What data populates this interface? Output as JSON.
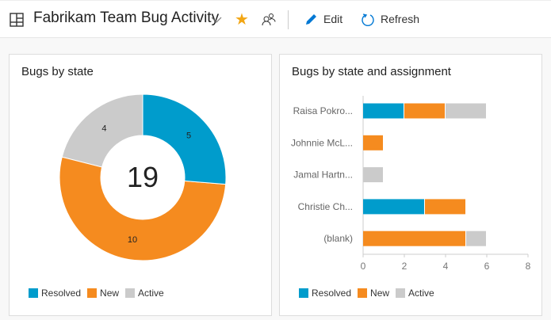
{
  "header": {
    "title": "Fabrikam Team Bug Activity",
    "edit_label": "Edit",
    "refresh_label": "Refresh",
    "icons": [
      "dashboard-icon",
      "chevron-down-icon",
      "star-icon",
      "team-icon",
      "edit-icon",
      "refresh-icon"
    ]
  },
  "colors": {
    "Resolved": "#009ccc",
    "New": "#f58b1f",
    "Active": "#cbcbcb",
    "star": "#f2a614",
    "accent": "#0078d4"
  },
  "chart_data": [
    {
      "type": "pie",
      "title": "Bugs by state",
      "total": "19",
      "categories": [
        "Resolved",
        "New",
        "Active"
      ],
      "values": [
        5,
        10,
        4
      ],
      "legend": "bottom-left"
    },
    {
      "type": "bar",
      "orientation": "horizontal",
      "stacked": true,
      "title": "Bugs by state and assignment",
      "categories": [
        "Raisa Pokro...",
        "Johnnie McL...",
        "Jamal Hartn...",
        "Christie Ch...",
        "(blank)"
      ],
      "series": [
        {
          "name": "Resolved",
          "values": [
            2,
            0,
            0,
            3,
            0
          ]
        },
        {
          "name": "New",
          "values": [
            2,
            1,
            0,
            2,
            5
          ]
        },
        {
          "name": "Active",
          "values": [
            2,
            0,
            1,
            0,
            1
          ]
        }
      ],
      "xlim": [
        0,
        8
      ],
      "xticks": [
        "0",
        "2",
        "4",
        "6",
        "8"
      ],
      "legend": "bottom-left"
    }
  ]
}
